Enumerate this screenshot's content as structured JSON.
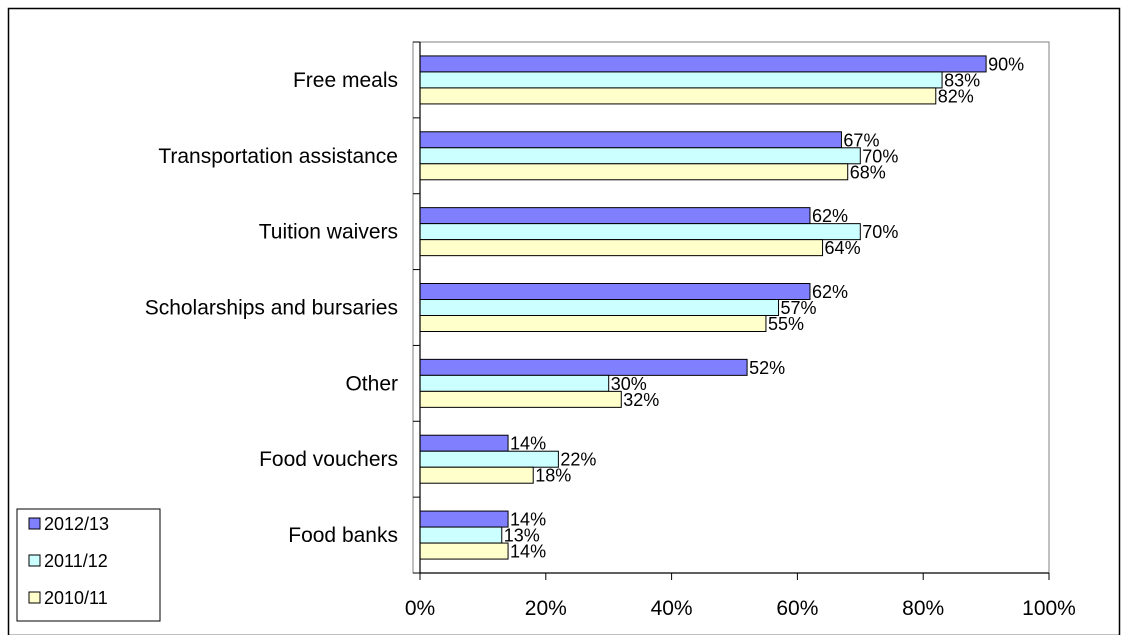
{
  "chart_data": {
    "type": "bar",
    "orientation": "horizontal",
    "title": "",
    "xlabel": "",
    "ylabel": "",
    "xlim": [
      0,
      100
    ],
    "x_ticks": [
      "0%",
      "20%",
      "40%",
      "60%",
      "80%",
      "100%"
    ],
    "grid": false,
    "legend_position": "bottom-left",
    "categories": [
      "Free meals",
      "Transportation assistance",
      "Tuition waivers",
      "Scholarships and bursaries",
      "Other",
      "Food vouchers",
      "Food banks"
    ],
    "series": [
      {
        "name": "2012/13",
        "color": "#8080ff",
        "values": [
          90,
          67,
          62,
          62,
          52,
          14,
          14
        ],
        "labels": [
          "90%",
          "67%",
          "62%",
          "62%",
          "52%",
          "14%",
          "14%"
        ]
      },
      {
        "name": "2011/12",
        "color": "#ccffff",
        "values": [
          83,
          70,
          70,
          57,
          30,
          22,
          13
        ],
        "labels": [
          "83%",
          "70%",
          "70%",
          "57%",
          "30%",
          "22%",
          "13%"
        ]
      },
      {
        "name": "2010/11",
        "color": "#ffffcc",
        "values": [
          82,
          68,
          64,
          55,
          32,
          18,
          14
        ],
        "labels": [
          "82%",
          "68%",
          "64%",
          "55%",
          "32%",
          "18%",
          "14%"
        ]
      }
    ]
  }
}
